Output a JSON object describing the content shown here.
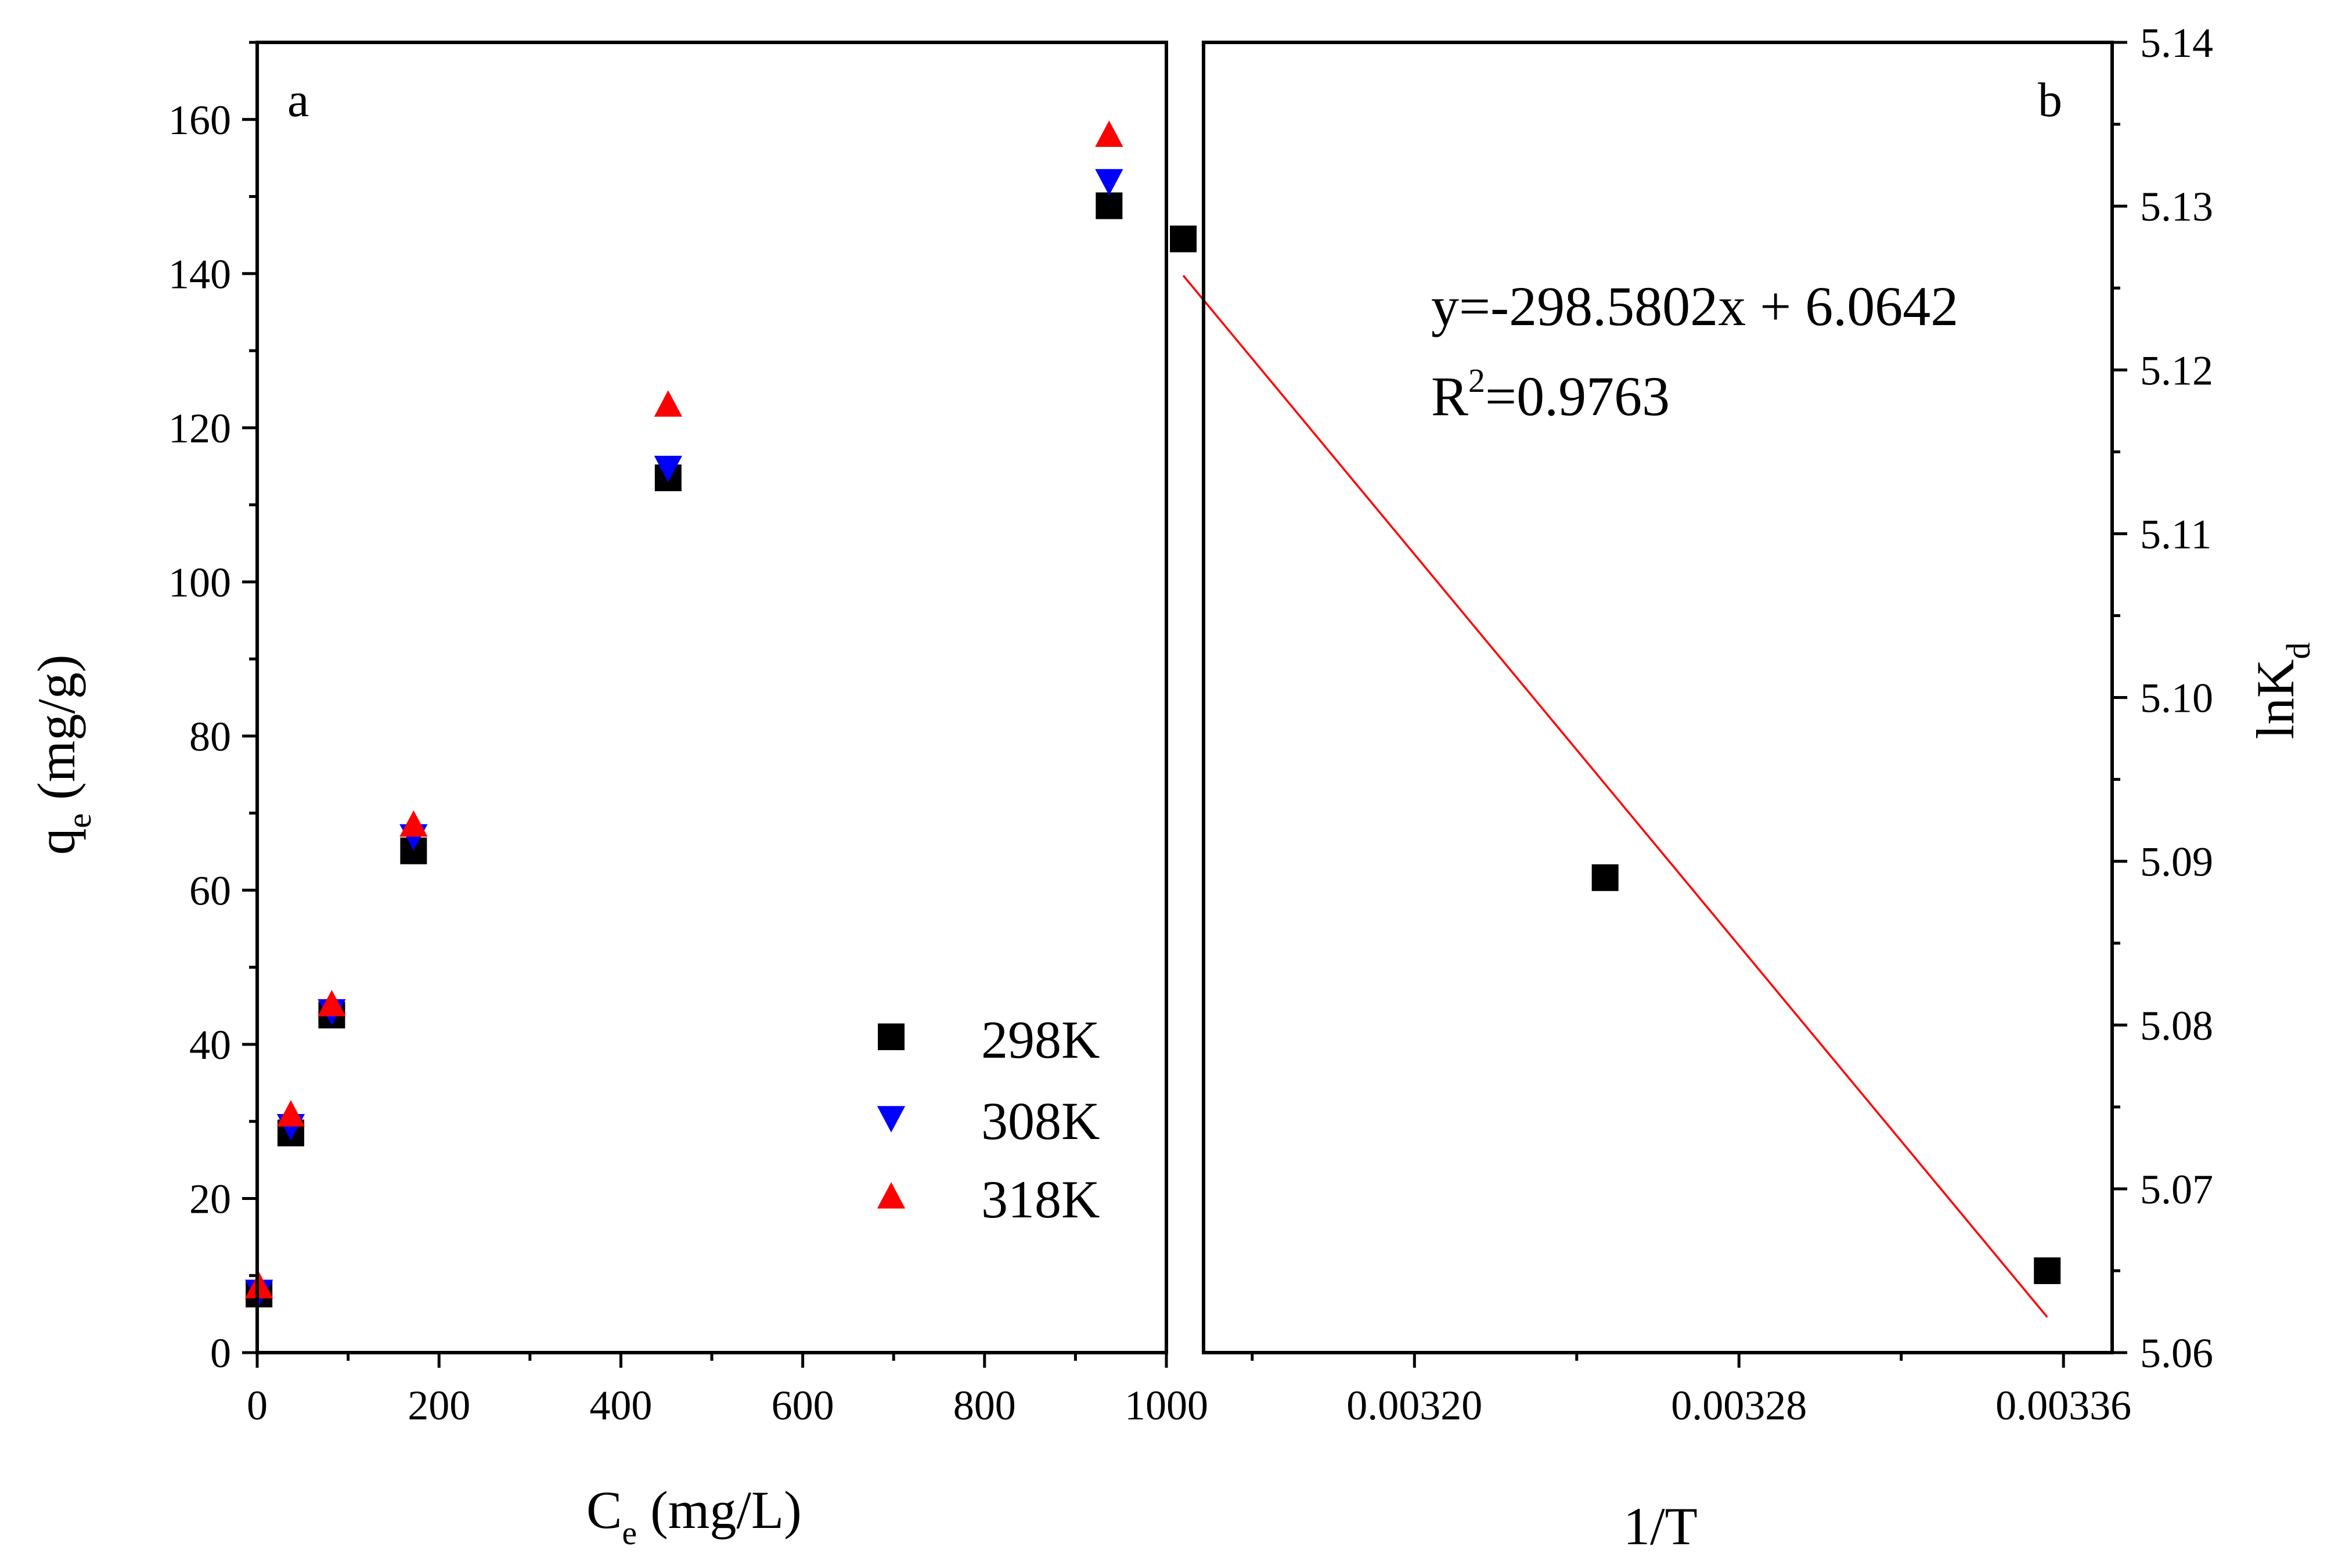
{
  "chart_data": [
    {
      "panel_label": "a",
      "type": "scatter",
      "xlabel": {
        "main": "C",
        "sub": "e",
        "rest": " (mg/L)"
      },
      "ylabel": {
        "main": "q",
        "sub": "e",
        "rest": " (mg/g)"
      },
      "xlim": [
        0,
        1000
      ],
      "ylim": [
        0,
        170
      ],
      "x_ticks": [
        0,
        200,
        400,
        600,
        800,
        1000
      ],
      "y_ticks": [
        0,
        20,
        40,
        60,
        80,
        100,
        120,
        140,
        160
      ],
      "series": [
        {
          "name": "298K",
          "marker": "square",
          "color": "#000000",
          "x": [
            2,
            37,
            82,
            172,
            452,
            937
          ],
          "y": [
            7.6,
            28.5,
            43.8,
            65.1,
            113.5,
            148.8
          ]
        },
        {
          "name": "308K",
          "marker": "triangle-down",
          "color": "#0000ff",
          "x": [
            2,
            37,
            82,
            172,
            452,
            937
          ],
          "y": [
            7.9,
            29.4,
            44.3,
            67.0,
            114.8,
            152.0
          ]
        },
        {
          "name": "318K",
          "marker": "triangle-up",
          "color": "#ff0000",
          "x": [
            2,
            37,
            82,
            172,
            452,
            937
          ],
          "y": [
            8.6,
            30.9,
            45.2,
            68.5,
            123.0,
            158.0
          ]
        }
      ],
      "legend_position": "bottom-right"
    },
    {
      "panel_label": "b",
      "type": "scatter",
      "xlabel": "1/T",
      "ylabel": {
        "main": "lnK",
        "sub": "d"
      },
      "xlim": [
        0.003148,
        0.003372
      ],
      "ylim": [
        5.06,
        5.14
      ],
      "x_ticks": [
        "0.00320",
        "0.00328",
        "0.00336"
      ],
      "x_minor_ticks": [
        0.00316,
        0.00324,
        0.00332
      ],
      "y_ticks": [
        "5.06",
        "5.07",
        "5.08",
        "5.09",
        "5.10",
        "5.11",
        "5.12",
        "5.13",
        "5.14"
      ],
      "y_axis_side": "right",
      "points": {
        "x": [
          0.003143,
          0.003247,
          0.003356
        ],
        "y": [
          5.128,
          5.089,
          5.065
        ],
        "color": "#000000",
        "marker": "square"
      },
      "fit": {
        "slope": -298.5802,
        "intercept": 6.0642,
        "x_start": 0.003143,
        "x_end": 0.003356,
        "color": "#ff0000"
      },
      "annotation": {
        "equation": "y=-298.5802x + 6.0642",
        "r2_main": "R",
        "r2_sup": "2",
        "r2_rest": "=0.9763"
      }
    }
  ]
}
